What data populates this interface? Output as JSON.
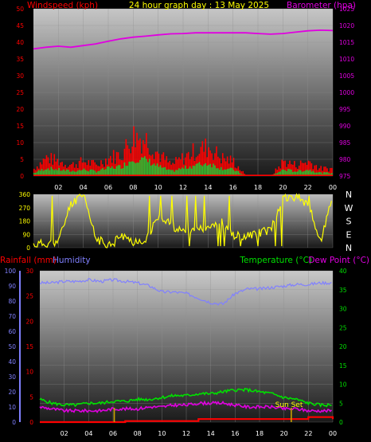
{
  "header": {
    "wind_label": "Windspeed (kph)",
    "title": "24 hour graph day : 13 May 2025",
    "baro_label": "Barometer (hpa)"
  },
  "rain_label": "Rainfall (mm)",
  "humidity_label": "Humidity",
  "temperature_label": "Temperature (°C)",
  "dew_label": "Dew Point (°C)",
  "sunset_label": "Sun Set",
  "direction_labels": [
    "N",
    "W",
    "S",
    "E",
    "N"
  ],
  "x_ticks": [
    "02",
    "04",
    "06",
    "08",
    "10",
    "12",
    "14",
    "16",
    "18",
    "20",
    "22",
    "00"
  ],
  "colors": {
    "wind_red": "#ff0000",
    "baro_magenta": "#e000e0",
    "direction_yellow": "#ffff00",
    "humidity_blue": "#8080ff",
    "temperature_green": "#00e000",
    "dew_magenta": "#e000e0",
    "rain_red": "#ff0000",
    "sun_tick": "#c8a000"
  },
  "chart_data": [
    {
      "type": "area",
      "title": "24 hour graph day : 13 May 2025",
      "x": [
        0,
        1,
        2,
        3,
        4,
        5,
        6,
        7,
        8,
        9,
        10,
        11,
        12,
        13,
        14,
        15,
        16,
        17,
        18,
        19,
        20,
        21,
        22,
        23,
        24
      ],
      "left_axis": {
        "label": "Windspeed (kph)",
        "ticks": [
          "0",
          "5",
          "10",
          "15",
          "20",
          "25",
          "30",
          "35",
          "40",
          "45",
          "50"
        ],
        "ylim": [
          0,
          50
        ]
      },
      "right_axis": {
        "label": "Barometer (hpa)",
        "ticks": [
          "975",
          "980",
          "985",
          "990",
          "995",
          "1000",
          "1005",
          "1010",
          "1015",
          "1020",
          "1025"
        ],
        "ylim": [
          975,
          1025
        ]
      },
      "series": [
        {
          "name": "Windspeed (kph)",
          "axis": "left",
          "values": [
            2,
            5,
            4,
            3,
            4,
            3,
            5,
            6,
            11,
            10,
            6,
            3,
            5,
            7,
            8,
            5,
            4,
            0,
            0,
            0,
            4,
            3,
            4,
            2,
            2
          ]
        },
        {
          "name": "Barometer (hpa)",
          "axis": "right",
          "values": [
            1013,
            1013.5,
            1013.8,
            1013.5,
            1014.0,
            1014.5,
            1015.3,
            1016.0,
            1016.5,
            1016.8,
            1017.2,
            1017.5,
            1017.6,
            1017.8,
            1017.8,
            1017.8,
            1017.8,
            1017.8,
            1017.6,
            1017.4,
            1017.6,
            1018.0,
            1018.4,
            1018.6,
            1018.5
          ]
        }
      ]
    },
    {
      "type": "scatter",
      "x": [
        0,
        1,
        2,
        3,
        4,
        5,
        6,
        7,
        8,
        9,
        10,
        11,
        12,
        13,
        14,
        15,
        16,
        17,
        18,
        19,
        20,
        21,
        22,
        23,
        24
      ],
      "left_axis": {
        "ticks": [
          "0",
          "90",
          "180",
          "270",
          "360"
        ],
        "ylim": [
          0,
          360
        ]
      },
      "series": [
        {
          "name": "Wind direction",
          "values": [
            20,
            30,
            40,
            300,
            350,
            60,
            20,
            80,
            40,
            60,
            200,
            160,
            100,
            120,
            150,
            180,
            80,
            80,
            100,
            120,
            330,
            340,
            300,
            40,
            340
          ]
        }
      ]
    },
    {
      "type": "line",
      "x": [
        0,
        1,
        2,
        3,
        4,
        5,
        6,
        7,
        8,
        9,
        10,
        11,
        12,
        13,
        14,
        15,
        16,
        17,
        18,
        19,
        20,
        21,
        22,
        23,
        24
      ],
      "left_axis": {
        "ticks": [
          "0",
          "10",
          "20",
          "30",
          "40",
          "50",
          "60",
          "70",
          "80",
          "90",
          "100"
        ],
        "ylim": [
          0,
          100
        ]
      },
      "rain_axis": {
        "label": "Rainfall (mm)",
        "ticks": [
          "0",
          "5",
          "10",
          "15",
          "20",
          "25",
          "30"
        ],
        "ylim": [
          0,
          30
        ]
      },
      "right_axis": {
        "ticks": [
          "0",
          "5",
          "10",
          "15",
          "20",
          "25",
          "30",
          "35",
          "40"
        ],
        "ylim": [
          0,
          40
        ]
      },
      "series": [
        {
          "name": "Humidity",
          "axis": "left",
          "values": [
            92,
            92,
            93,
            93,
            94,
            93,
            94,
            93,
            92,
            90,
            86,
            86,
            85,
            82,
            79,
            78,
            85,
            88,
            88,
            89,
            90,
            91,
            91,
            92,
            92
          ]
        },
        {
          "name": "Temperature (°C)",
          "axis": "right",
          "values": [
            6,
            5,
            4.5,
            4.5,
            5,
            5,
            5.5,
            5.5,
            6,
            6,
            6.5,
            7,
            7,
            7.5,
            7.5,
            8,
            8.5,
            8.5,
            8,
            7.5,
            6.5,
            6,
            5,
            4.5,
            4.5
          ]
        },
        {
          "name": "Dew Point (°C)",
          "axis": "right",
          "values": [
            4,
            3.5,
            3,
            3,
            3,
            3,
            3.5,
            3.5,
            3.5,
            4,
            4,
            4.5,
            4.5,
            5,
            5,
            5,
            4.5,
            4,
            4,
            4,
            3.5,
            3.5,
            3,
            3,
            3
          ]
        },
        {
          "name": "Rainfall (mm)",
          "axis": "rain",
          "values": [
            0,
            0,
            0,
            0,
            0,
            0,
            0,
            0.2,
            0.2,
            0.2,
            0.2,
            0.2,
            0.2,
            0.6,
            0.6,
            0.6,
            0.6,
            0.6,
            0.6,
            0.6,
            0.6,
            0.6,
            1,
            1,
            0.6
          ]
        }
      ]
    }
  ]
}
